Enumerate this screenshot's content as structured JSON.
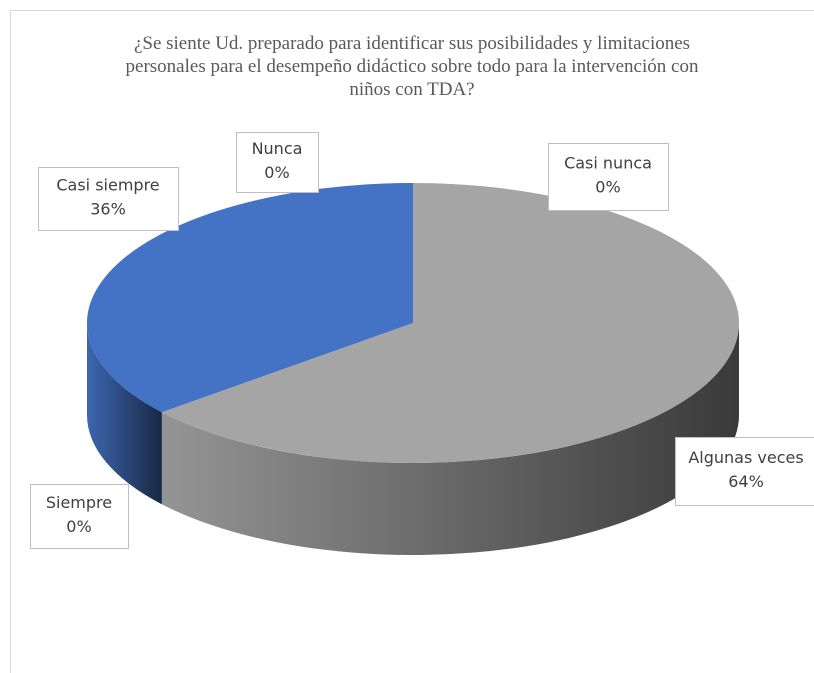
{
  "chart_data": {
    "type": "pie",
    "title": "¿Se siente Ud. preparado para identificar sus posibilidades y limitaciones personales para el desempeño didáctico sobre todo para la intervención con niños con TDA?",
    "categories": [
      "Nunca",
      "Casi nunca",
      "Algunas veces",
      "Siempre",
      "Casi siempre"
    ],
    "values": [
      0,
      0,
      64,
      0,
      36
    ],
    "value_labels": [
      "0%",
      "0%",
      "64%",
      "0%",
      "36%"
    ],
    "colors": [
      "#5b9bd5",
      "#ed7d31",
      "#a5a5a5",
      "#ffc000",
      "#4472c4"
    ]
  }
}
